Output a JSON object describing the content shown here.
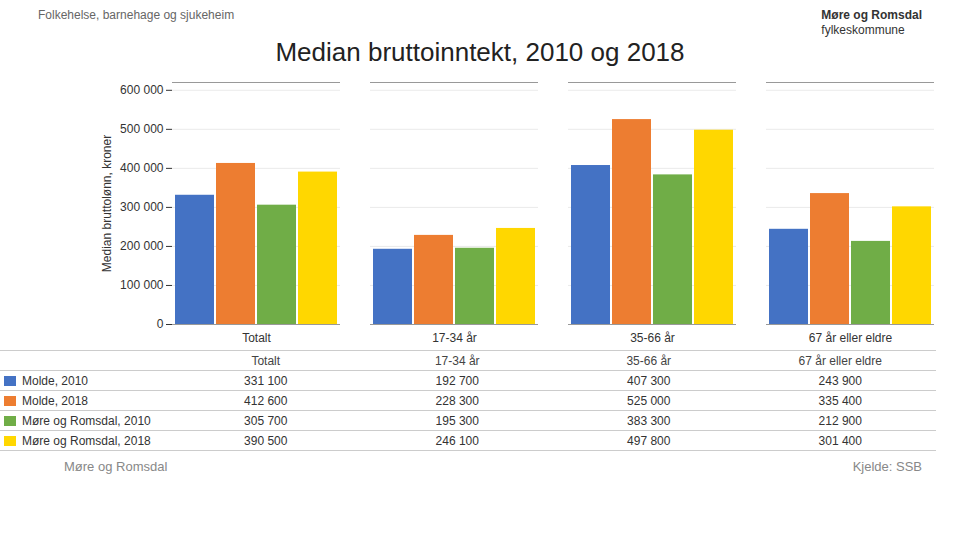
{
  "chart_data": {
    "type": "bar",
    "title": "Median bruttoinntekt, 2010 og 2018",
    "ylabel": "Median bruttolønn, kroner",
    "categories": [
      "Totalt",
      "17-34 år",
      "35-66 år",
      "67 år eller eldre"
    ],
    "series": [
      {
        "name": "Molde, 2010",
        "color": "#4472C4",
        "values": [
          331100,
          192700,
          407300,
          243900
        ],
        "value_labels": [
          "331 100",
          "192 700",
          "407 300",
          "243 900"
        ]
      },
      {
        "name": "Molde, 2018",
        "color": "#ED7D31",
        "values": [
          412600,
          228300,
          525000,
          335400
        ],
        "value_labels": [
          "412 600",
          "228 300",
          "525 000",
          "335 400"
        ]
      },
      {
        "name": "Møre og Romsdal, 2010",
        "color": "#70AD47",
        "values": [
          305700,
          195300,
          383300,
          212900
        ],
        "value_labels": [
          "305 700",
          "195 300",
          "383 300",
          "212 900"
        ]
      },
      {
        "name": "Møre og Romsdal, 2018",
        "color": "#FFD700",
        "values": [
          390500,
          246100,
          497800,
          301400
        ],
        "value_labels": [
          "390 500",
          "246 100",
          "497 800",
          "301 400"
        ]
      }
    ],
    "ylim": [
      0,
      620000
    ],
    "yticks": [
      0,
      {
        "value": 100000,
        "label": "100 000"
      },
      {
        "value": 200000,
        "label": "200 000"
      },
      {
        "value": 300000,
        "label": "300 000"
      },
      {
        "value": 400000,
        "label": "400 000"
      },
      {
        "value": 500000,
        "label": "500 000"
      },
      {
        "value": 600000,
        "label": "600 000"
      }
    ],
    "grid": true,
    "legend": "bottom",
    "annotations": [
      "Folkehelse, barnehage og sjukeheim",
      "Møre og Romsdal",
      "fylkeskommune",
      "Møre og Romsdal",
      "Kjelde: SSB"
    ]
  }
}
